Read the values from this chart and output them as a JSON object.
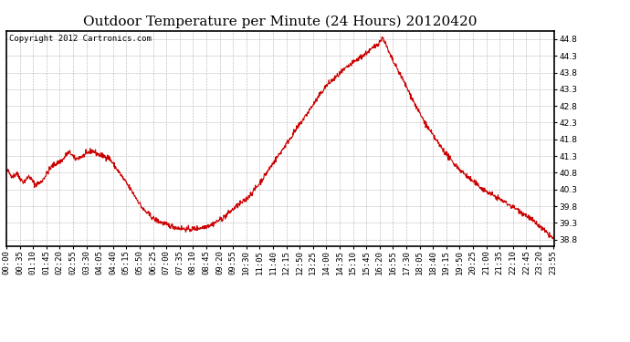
{
  "title": "Outdoor Temperature per Minute (24 Hours) 20120420",
  "copyright_text": "Copyright 2012 Cartronics.com",
  "line_color": "#cc0000",
  "bg_color": "#ffffff",
  "plot_bg_color": "#ffffff",
  "grid_color": "#b0b0b0",
  "ylim": [
    38.6,
    45.05
  ],
  "yticks": [
    38.8,
    39.3,
    39.8,
    40.3,
    40.8,
    41.3,
    41.8,
    42.3,
    42.8,
    43.3,
    43.8,
    44.3,
    44.8
  ],
  "title_fontsize": 11,
  "tick_fontsize": 6.5,
  "copyright_fontsize": 6.5,
  "line_width": 0.8
}
